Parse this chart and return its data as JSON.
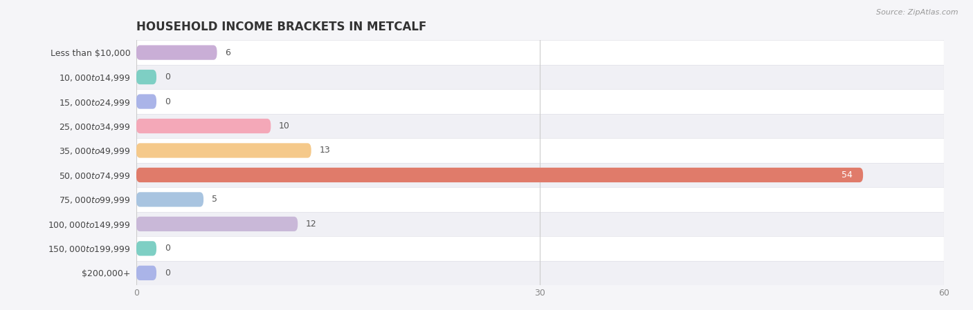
{
  "title": "HOUSEHOLD INCOME BRACKETS IN METCALF",
  "source": "Source: ZipAtlas.com",
  "categories": [
    "Less than $10,000",
    "$10,000 to $14,999",
    "$15,000 to $24,999",
    "$25,000 to $34,999",
    "$35,000 to $49,999",
    "$50,000 to $74,999",
    "$75,000 to $99,999",
    "$100,000 to $149,999",
    "$150,000 to $199,999",
    "$200,000+"
  ],
  "values": [
    6,
    0,
    0,
    10,
    13,
    54,
    5,
    12,
    0,
    0
  ],
  "bar_colors": [
    "#c9aed6",
    "#7ecfc4",
    "#aab4e8",
    "#f4a8b8",
    "#f5c98a",
    "#e07b6a",
    "#a8c4e0",
    "#c9b8d8",
    "#7ecfc4",
    "#aab4e8"
  ],
  "xlim": [
    0,
    60
  ],
  "xticks": [
    0,
    30,
    60
  ],
  "row_colors": [
    "#ffffff",
    "#f5f5f8",
    "#ffffff",
    "#f5f5f8",
    "#ffffff",
    "#f5f5f8",
    "#ffffff",
    "#f5f5f8",
    "#ffffff",
    "#f5f5f8"
  ],
  "bg_color": "#f5f5f8",
  "title_fontsize": 12,
  "label_fontsize": 9,
  "value_fontsize": 9,
  "figsize": [
    14.06,
    4.49
  ],
  "dpi": 100
}
